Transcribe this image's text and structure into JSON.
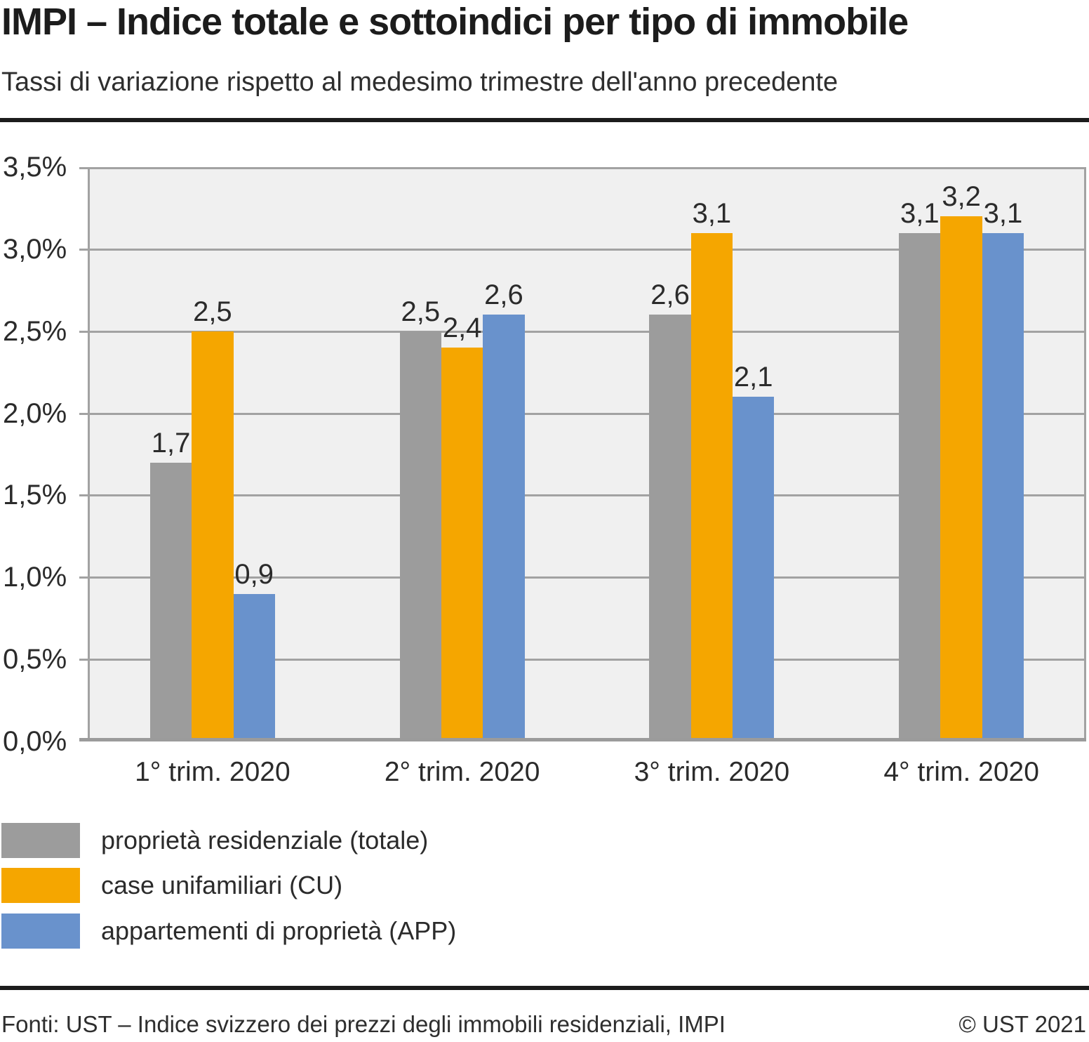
{
  "header": {
    "title": "IMPI – Indice totale e sottoindici per tipo di immobile",
    "subtitle": "Tassi di variazione rispetto al medesimo trimestre dell'anno precedente"
  },
  "chart_data": {
    "type": "bar",
    "title": "IMPI – Indice totale e sottoindici per tipo di immobile",
    "subtitle": "Tassi di variazione rispetto al medesimo trimestre dell'anno precedente",
    "categories": [
      "1° trim. 2020",
      "2° trim. 2020",
      "3° trim. 2020",
      "4° trim. 2020"
    ],
    "series": [
      {
        "name": "proprietà residenziale (totale)",
        "color": "#9c9c9c",
        "values": [
          1.7,
          2.5,
          2.6,
          3.1
        ],
        "value_labels": [
          "1,7",
          "2,5",
          "2,6",
          "3,1"
        ]
      },
      {
        "name": "case unifamiliari (CU)",
        "color": "#f5a600",
        "values": [
          2.5,
          2.4,
          3.1,
          3.2
        ],
        "value_labels": [
          "2,5",
          "2,4",
          "3,1",
          "3,2"
        ]
      },
      {
        "name": "appartementi di proprietà (APP)",
        "color": "#6992cc",
        "values": [
          0.9,
          2.6,
          2.1,
          3.1
        ],
        "value_labels": [
          "0,9",
          "2,6",
          "2,1",
          "3,1"
        ]
      }
    ],
    "xlabel": "",
    "ylabel": "",
    "ylim": [
      0,
      3.5
    ],
    "y_tick_step": 0.5,
    "y_tick_labels_top_to_bottom": [
      "3,5%",
      "3,0%",
      "2,5%",
      "2,0%",
      "1,5%",
      "1,0%",
      "0,5%",
      "0,0%"
    ],
    "grid": true,
    "legend_position": "bottom-left",
    "plot_background": "#f0f0f0",
    "gridline_color": "#a2a2a2",
    "axis_color": "#9b9b9b"
  },
  "footer": {
    "source": "Fonti: UST – Indice svizzero dei prezzi degli immobili residenziali, IMPI",
    "copyright": "© UST 2021"
  }
}
